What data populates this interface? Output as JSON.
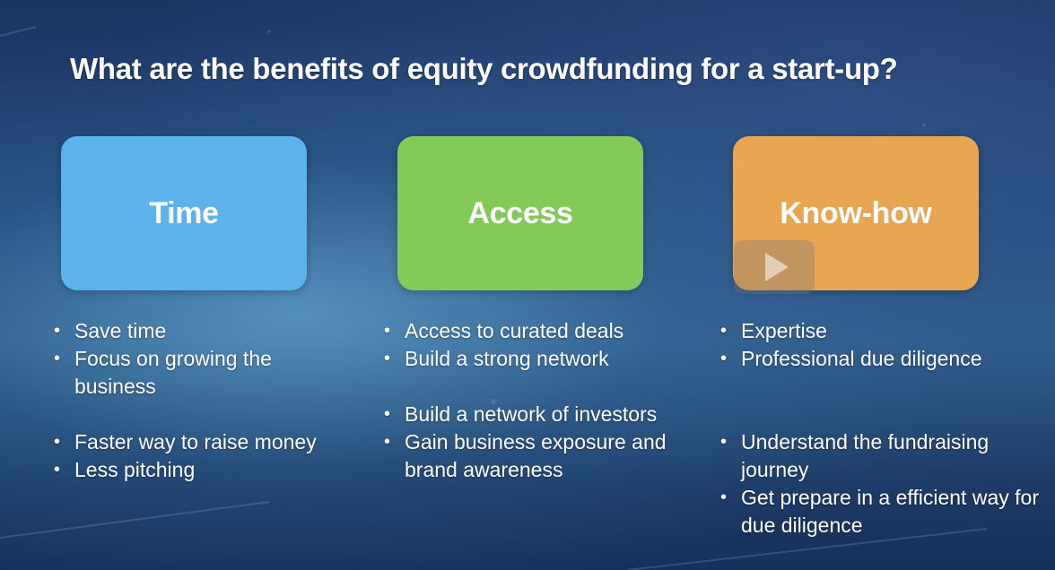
{
  "slide": {
    "title": "What are the benefits of equity crowdfunding for a start-up?"
  },
  "cards": {
    "time": {
      "label": "Time",
      "color": "#5cb2ea"
    },
    "access": {
      "label": "Access",
      "color": "#83ca59"
    },
    "knowhow": {
      "label": "Know-how",
      "color": "#e8a552"
    }
  },
  "columns": {
    "time": {
      "group1": [
        "Save time",
        "Focus on growing the business"
      ],
      "group2": [
        "Faster way to raise money",
        "Less pitching"
      ]
    },
    "access": {
      "group1": [
        "Access to curated deals",
        "Build a strong network"
      ],
      "group2": [
        "Build a network of investors",
        "Gain business exposure and brand awareness"
      ]
    },
    "knowhow": {
      "group1": [
        "Expertise",
        "Professional due diligence"
      ],
      "group2": [
        "Understand the fundraising journey",
        "Get prepare in a efficient way for due diligence"
      ]
    }
  },
  "video": {
    "play_icon": "play-icon"
  }
}
